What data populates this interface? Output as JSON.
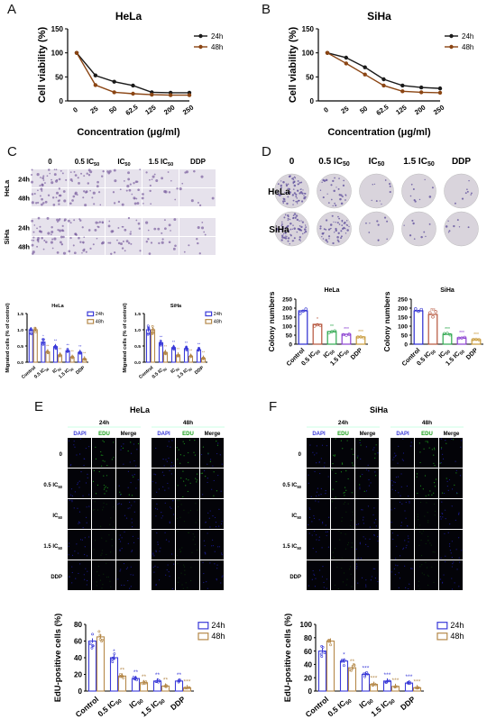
{
  "panels": {
    "A": "A",
    "B": "B",
    "C": "C",
    "D": "D",
    "E": "E",
    "F": "F"
  },
  "chart_data": [
    {
      "id": "A",
      "type": "line",
      "title": "HeLa",
      "xlabel": "Concentration (μg/ml)",
      "ylabel": "Cell viability (%)",
      "categories": [
        "0",
        "25",
        "50",
        "62.5",
        "125",
        "200",
        "250"
      ],
      "yticks": [
        0,
        50,
        100,
        150
      ],
      "ylim": [
        0,
        150
      ],
      "legend_position": "top-right",
      "series": [
        {
          "name": "24h",
          "color": "#1a1a1a",
          "values": [
            100,
            53,
            40,
            32,
            18,
            17,
            17
          ]
        },
        {
          "name": "48h",
          "color": "#8B4513",
          "values": [
            100,
            33,
            18,
            15,
            13,
            12,
            12
          ]
        }
      ]
    },
    {
      "id": "B",
      "type": "line",
      "title": "SiHa",
      "xlabel": "Concentration (μg/ml)",
      "ylabel": "Cell viability (%)",
      "categories": [
        "0",
        "25",
        "50",
        "62.5",
        "125",
        "200",
        "250"
      ],
      "yticks": [
        0,
        50,
        100,
        150
      ],
      "ylim": [
        0,
        150
      ],
      "legend_position": "top-right",
      "series": [
        {
          "name": "24h",
          "color": "#1a1a1a",
          "values": [
            100,
            90,
            70,
            45,
            32,
            28,
            26
          ]
        },
        {
          "name": "48h",
          "color": "#8B4513",
          "values": [
            100,
            78,
            55,
            32,
            20,
            18,
            17
          ]
        }
      ]
    },
    {
      "id": "C-HeLa",
      "type": "bar",
      "title": "HeLa",
      "ylabel": "Migrated cells (% of control)",
      "categories": [
        "Control",
        "0.5 IC50",
        "IC50",
        "1.5 IC50",
        "DDP"
      ],
      "yticks": [
        "0.0",
        "0.5",
        "1.0",
        "1.5"
      ],
      "ylim": [
        0,
        1.5
      ],
      "legend_position": "top-right",
      "series": [
        {
          "name": "24h",
          "color": "#3a3ad8",
          "values": [
            1.0,
            0.62,
            0.48,
            0.35,
            0.3
          ]
        },
        {
          "name": "48h",
          "color": "#b5894a",
          "values": [
            1.0,
            0.32,
            0.22,
            0.15,
            0.1
          ]
        }
      ],
      "stars": [
        [
          "",
          ""
        ],
        [
          "*",
          "**"
        ],
        [
          "**",
          "**"
        ],
        [
          "**",
          "**"
        ],
        [
          "**",
          "**"
        ]
      ]
    },
    {
      "id": "C-SiHa",
      "type": "bar",
      "title": "SiHa",
      "ylabel": "Migrated cells (% of control)",
      "categories": [
        "Control",
        "0.5 IC50",
        "IC50",
        "1.5 IC50",
        "DDP"
      ],
      "yticks": [
        "0.0",
        "0.5",
        "1.0",
        "1.5"
      ],
      "ylim": [
        0,
        1.5
      ],
      "legend_position": "top-right",
      "series": [
        {
          "name": "24h",
          "color": "#3a3ad8",
          "values": [
            1.0,
            0.6,
            0.45,
            0.42,
            0.38
          ]
        },
        {
          "name": "48h",
          "color": "#b5894a",
          "values": [
            1.0,
            0.3,
            0.22,
            0.18,
            0.12
          ]
        }
      ],
      "stars": [
        [
          "",
          ""
        ],
        [
          "**",
          "**"
        ],
        [
          "**",
          "**"
        ],
        [
          "**",
          "**"
        ],
        [
          "**",
          "**"
        ]
      ]
    },
    {
      "id": "D-HeLa",
      "type": "bar",
      "title": "HeLa",
      "ylabel": "Colony numbers",
      "categories": [
        "Control",
        "0.5 IC50",
        "IC50",
        "1.5 IC50",
        "DDP"
      ],
      "yticks": [
        0,
        50,
        100,
        150,
        200,
        250
      ],
      "ylim": [
        0,
        250
      ],
      "series": [
        {
          "name": "Colonies",
          "colors": [
            "#2a2acf",
            "#b5533a",
            "#2fa84f",
            "#8a3fd0",
            "#c89a3a"
          ],
          "values": [
            185,
            110,
            70,
            55,
            40
          ]
        }
      ],
      "stars": [
        "",
        "*",
        "**",
        "***",
        "***"
      ]
    },
    {
      "id": "D-SiHa",
      "type": "bar",
      "title": "SiHa",
      "ylabel": "Colony numbers",
      "categories": [
        "Control",
        "0.5 IC50",
        "IC50",
        "1.5 IC50",
        "DDP"
      ],
      "yticks": [
        0,
        50,
        100,
        150,
        200,
        250
      ],
      "ylim": [
        0,
        250
      ],
      "series": [
        {
          "name": "Colonies",
          "colors": [
            "#2a2acf",
            "#b5533a",
            "#2fa84f",
            "#8a3fd0",
            "#c89a3a"
          ],
          "values": [
            185,
            165,
            55,
            35,
            25
          ]
        }
      ],
      "stars": [
        "",
        "ns",
        "***",
        "***",
        "***"
      ]
    },
    {
      "id": "E-bar",
      "type": "bar",
      "ylabel": "EdU-positive cells (%)",
      "categories": [
        "Control",
        "0.5 IC50",
        "IC50",
        "1.5 IC50",
        "DDP"
      ],
      "yticks": [
        0,
        20,
        40,
        60,
        80
      ],
      "ylim": [
        0,
        80
      ],
      "legend_position": "top-right",
      "series": [
        {
          "name": "24h",
          "color": "#3a3ad8",
          "values": [
            60,
            40,
            15,
            12,
            12
          ]
        },
        {
          "name": "48h",
          "color": "#b5894a",
          "values": [
            65,
            18,
            10,
            6,
            4
          ]
        }
      ],
      "stars": [
        [
          "",
          ""
        ],
        [
          "*",
          "**"
        ],
        [
          "**",
          "**"
        ],
        [
          "**",
          "**"
        ],
        [
          "**",
          "***"
        ]
      ]
    },
    {
      "id": "F-bar",
      "type": "bar",
      "ylabel": "EdU-positive cells (%)",
      "categories": [
        "Control",
        "0.5 IC50",
        "IC50",
        "1.5 IC50",
        "DDP"
      ],
      "yticks": [
        0,
        20,
        40,
        60,
        80,
        100
      ],
      "ylim": [
        0,
        100
      ],
      "legend_position": "top-right",
      "series": [
        {
          "name": "24h",
          "color": "#3a3ad8",
          "values": [
            60,
            45,
            25,
            15,
            12
          ]
        },
        {
          "name": "48h",
          "color": "#b5894a",
          "values": [
            75,
            35,
            10,
            7,
            5
          ]
        }
      ],
      "stars": [
        [
          "",
          ""
        ],
        [
          "*",
          "**"
        ],
        [
          "***",
          "***"
        ],
        [
          "***",
          "***"
        ],
        [
          "***",
          "***"
        ]
      ]
    }
  ],
  "panelC": {
    "columns": [
      "0",
      "0.5 IC50",
      "IC50",
      "1.5 IC50",
      "DDP"
    ],
    "groups": [
      {
        "name": "HeLa",
        "rows": [
          "24h",
          "48h"
        ]
      },
      {
        "name": "SiHa",
        "rows": [
          "24h",
          "48h"
        ]
      }
    ]
  },
  "panelD": {
    "columns": [
      "0",
      "0.5 IC50",
      "IC50",
      "1.5 IC50",
      "DDP"
    ],
    "rows": [
      "HeLa",
      "SiHa"
    ]
  },
  "panelE": {
    "title": "HeLa",
    "times": [
      "24h",
      "48h"
    ],
    "channels": [
      "DAPI",
      "EDU",
      "Merge"
    ],
    "rows": [
      "0",
      "0.5 IC50",
      "IC50",
      "1.5 IC50",
      "DDP"
    ]
  },
  "panelF": {
    "title": "SiHa",
    "times": [
      "24h",
      "48h"
    ],
    "channels": [
      "DAPI",
      "EDU",
      "Merge"
    ],
    "rows": [
      "0",
      "0.5 IC50",
      "IC50",
      "1.5 IC50",
      "DDP"
    ]
  },
  "colors": {
    "dapi": "#1a1a8a",
    "edu": "#1a8a1a",
    "colony_bg": "#d9d4dc",
    "stain": "#7a5fa0"
  }
}
